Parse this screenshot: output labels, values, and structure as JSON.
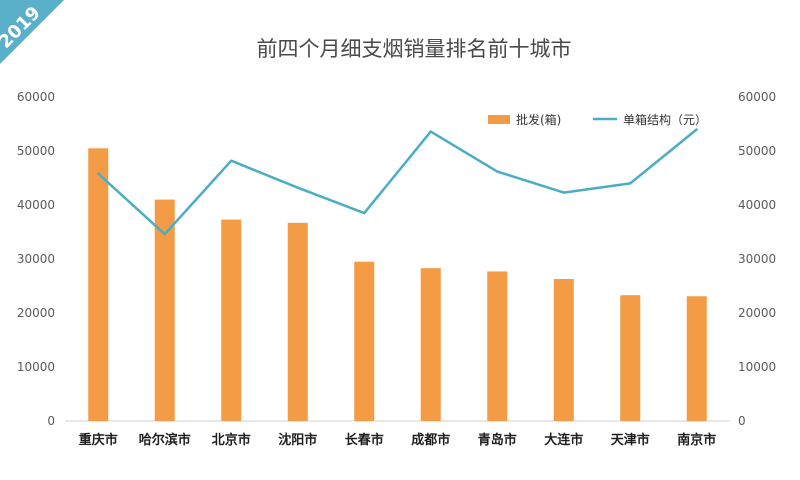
{
  "badge": {
    "year": "2019"
  },
  "colors": {
    "bar": "#F39C45",
    "line": "#4BACC6",
    "badge": "#5BB0C9"
  },
  "chart_data": {
    "type": "bar",
    "title": "前四个月细支烟销量排名前十城市",
    "categories": [
      "重庆市",
      "哈尔滨市",
      "北京市",
      "沈阳市",
      "长春市",
      "成都市",
      "青岛市",
      "大连市",
      "天津市",
      "南京市"
    ],
    "series": [
      {
        "name": "批发(箱)",
        "type": "bar",
        "axis": "left",
        "values": [
          50500,
          41000,
          37300,
          36700,
          29500,
          28300,
          27700,
          26300,
          23300,
          23100
        ]
      },
      {
        "name": "单箱结构（元）",
        "type": "line",
        "axis": "right",
        "values": [
          45800,
          34600,
          48200,
          43200,
          38500,
          53600,
          46200,
          42300,
          44000,
          54000
        ]
      }
    ],
    "ylim_left": [
      0,
      60000
    ],
    "ylim_right": [
      0,
      60000
    ],
    "yticks_left": [
      "0",
      "10000",
      "20000",
      "30000",
      "40000",
      "50000",
      "60000"
    ],
    "yticks_right": [
      "0",
      "10000",
      "20000",
      "30000",
      "40000",
      "50000",
      "60000"
    ],
    "grid": false,
    "legend": "top-right"
  }
}
